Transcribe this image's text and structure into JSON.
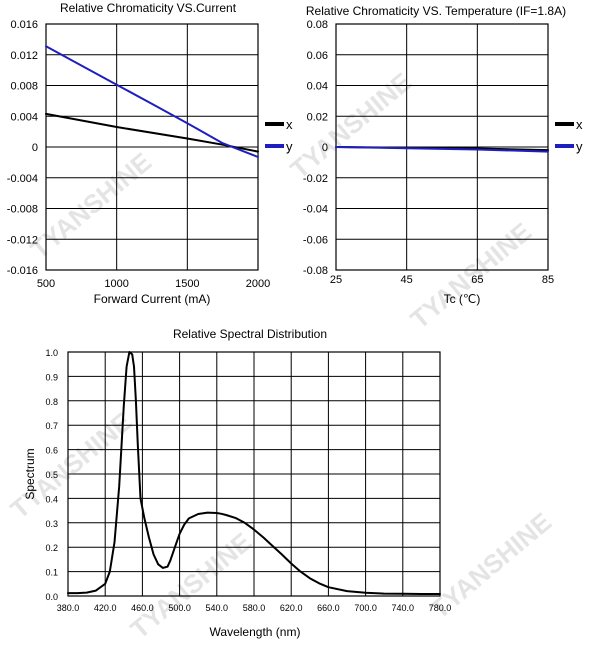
{
  "watermark": {
    "text": "TYANSHINE",
    "color": "#cfcfcf"
  },
  "chart_data": [
    {
      "id": "current",
      "type": "line",
      "title": "Relative Chromaticity VS.Current",
      "xlabel": "Forward Current (mA)",
      "ylabel": "",
      "xlim": [
        500,
        2000
      ],
      "ylim": [
        -0.016,
        0.016
      ],
      "x_ticks": [
        500,
        1000,
        1500,
        2000
      ],
      "x_tick_labels": [
        "500",
        "1000",
        "1500",
        "2000"
      ],
      "y_ticks": [
        0.016,
        0.012,
        0.008,
        0.004,
        0,
        -0.004,
        -0.008,
        -0.012,
        -0.016
      ],
      "y_tick_labels": [
        "0.016",
        "0.012",
        "0.008",
        "0.004",
        "0",
        "-0.004",
        "-0.008",
        "-0.012",
        "-0.016"
      ],
      "grid": true,
      "legend": "right",
      "series": [
        {
          "name": "x",
          "color": "#000000",
          "x": [
            500,
            1000,
            1500,
            1750,
            2000
          ],
          "y": [
            0.0043,
            0.0026,
            0.0011,
            0.0003,
            -0.0006
          ]
        },
        {
          "name": "y",
          "color": "#1f1fbf",
          "x": [
            500,
            750,
            1000,
            1250,
            1500,
            1750,
            2000
          ],
          "y": [
            0.0131,
            0.0106,
            0.0081,
            0.0056,
            0.0031,
            0.0005,
            -0.0013
          ]
        }
      ]
    },
    {
      "id": "temperature",
      "type": "line",
      "title": "Relative Chromaticity VS. Temperature (IF=1.8A)",
      "xlabel": "Tc (℃)",
      "ylabel": "",
      "xlim": [
        25,
        85
      ],
      "ylim": [
        -0.08,
        0.08
      ],
      "x_ticks": [
        25,
        45,
        65,
        85
      ],
      "x_tick_labels": [
        "25",
        "45",
        "65",
        "85"
      ],
      "y_ticks": [
        0.08,
        0.06,
        0.04,
        0.02,
        0,
        -0.02,
        -0.04,
        -0.06,
        -0.08
      ],
      "y_tick_labels": [
        "0.08",
        "0.06",
        "0.04",
        "0.02",
        "0",
        "-0.02",
        "-0.04",
        "-0.06",
        "-0.08"
      ],
      "grid": true,
      "legend": "right",
      "series": [
        {
          "name": "x",
          "color": "#000000",
          "x": [
            25,
            45,
            65,
            85
          ],
          "y": [
            0,
            -0.0005,
            -0.001,
            -0.002
          ]
        },
        {
          "name": "y",
          "color": "#1f1fbf",
          "x": [
            25,
            45,
            65,
            85
          ],
          "y": [
            0,
            -0.0008,
            -0.0016,
            -0.003
          ]
        }
      ]
    },
    {
      "id": "spectrum",
      "type": "line",
      "title": "Relative Spectral Distribution",
      "xlabel": "Wavelength (nm)",
      "ylabel": "Spectrum",
      "xlim": [
        380,
        780
      ],
      "ylim": [
        0,
        1.0
      ],
      "x_ticks": [
        380,
        420,
        460,
        500,
        540,
        580,
        620,
        660,
        700,
        740,
        780
      ],
      "x_tick_labels": [
        "380.0",
        "420.0",
        "460.0",
        "500.0",
        "540.0",
        "580.0",
        "620.0",
        "660.0",
        "700.0",
        "740.0",
        "780.0"
      ],
      "y_ticks": [
        0,
        0.1,
        0.2,
        0.3,
        0.4,
        0.5,
        0.6,
        0.7,
        0.8,
        0.9,
        1.0
      ],
      "y_tick_labels": [
        "0.0",
        "0.1",
        "0.2",
        "0.3",
        "0.4",
        "0.5",
        "0.6",
        "0.7",
        "0.8",
        "0.9",
        "1.0"
      ],
      "grid": true,
      "series": [
        {
          "color": "#000000",
          "x": [
            380,
            390,
            400,
            410,
            420,
            425,
            430,
            435,
            440,
            443,
            446,
            449,
            451,
            453,
            455,
            458,
            462,
            467,
            472,
            477,
            482,
            487,
            490,
            495,
            500,
            505,
            510,
            520,
            530,
            540,
            545,
            550,
            560,
            570,
            580,
            590,
            600,
            610,
            620,
            630,
            640,
            650,
            660,
            680,
            700,
            720,
            740,
            760,
            780
          ],
          "y": [
            0.012,
            0.012,
            0.014,
            0.022,
            0.05,
            0.1,
            0.22,
            0.45,
            0.78,
            0.94,
            1.0,
            0.99,
            0.94,
            0.8,
            0.62,
            0.4,
            0.32,
            0.24,
            0.17,
            0.13,
            0.115,
            0.12,
            0.145,
            0.2,
            0.255,
            0.293,
            0.318,
            0.336,
            0.342,
            0.34,
            0.337,
            0.332,
            0.32,
            0.3,
            0.272,
            0.24,
            0.205,
            0.17,
            0.133,
            0.1,
            0.073,
            0.052,
            0.036,
            0.02,
            0.013,
            0.01,
            0.009,
            0.008,
            0.008
          ]
        }
      ]
    }
  ]
}
